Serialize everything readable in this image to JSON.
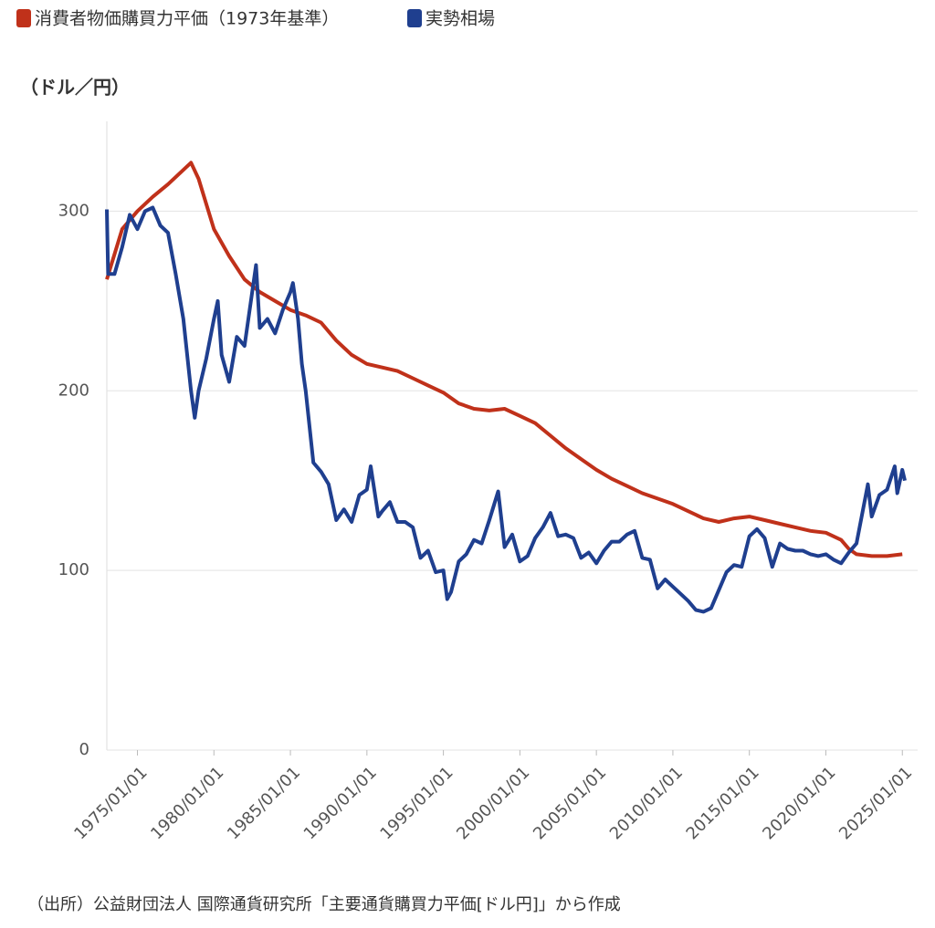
{
  "chart_data": {
    "type": "line",
    "legend_position": "top-left",
    "ylabel": "（ドル／円）",
    "source": "（出所）公益財団法人 国際通貨研究所「主要通貨購買力平価[ドル円]」から作成",
    "xlim": [
      "1973/01/01",
      "2026/01/01"
    ],
    "xticks": [
      "1975/01/01",
      "1980/01/01",
      "1985/01/01",
      "1990/01/01",
      "1995/01/01",
      "2000/01/01",
      "2005/01/01",
      "2010/01/01",
      "2015/01/01",
      "2020/01/01",
      "2025/01/01"
    ],
    "ylim": [
      0,
      350
    ],
    "yticks": [
      0,
      100,
      200,
      300
    ],
    "grid": true,
    "series": [
      {
        "name": "消費者物価購買力平価（1973年基準）",
        "color": "#c0311a",
        "x": [
          "1973/01/01",
          "1974/01/01",
          "1975/01/01",
          "1976/01/01",
          "1977/01/01",
          "1978/07/01",
          "1979/01/01",
          "1980/01/01",
          "1981/01/01",
          "1982/01/01",
          "1983/01/01",
          "1984/01/01",
          "1985/01/01",
          "1986/01/01",
          "1987/01/01",
          "1988/01/01",
          "1989/01/01",
          "1990/01/01",
          "1991/01/01",
          "1992/01/01",
          "1993/01/01",
          "1994/01/01",
          "1995/01/01",
          "1996/01/01",
          "1997/01/01",
          "1998/01/01",
          "1999/01/01",
          "2000/01/01",
          "2001/01/01",
          "2002/01/01",
          "2003/01/01",
          "2004/01/01",
          "2005/01/01",
          "2006/01/01",
          "2007/01/01",
          "2008/01/01",
          "2009/01/01",
          "2010/01/01",
          "2011/01/01",
          "2012/01/01",
          "2013/01/01",
          "2014/01/01",
          "2015/01/01",
          "2016/01/01",
          "2017/01/01",
          "2018/01/01",
          "2019/01/01",
          "2020/01/01",
          "2021/01/01",
          "2021/07/01",
          "2022/01/01",
          "2023/01/01",
          "2024/01/01",
          "2025/01/01"
        ],
        "values": [
          262,
          290,
          300,
          308,
          315,
          327,
          318,
          290,
          275,
          262,
          255,
          250,
          245,
          242,
          238,
          228,
          220,
          215,
          213,
          211,
          207,
          203,
          199,
          193,
          190,
          189,
          190,
          186,
          182,
          175,
          168,
          162,
          156,
          151,
          147,
          143,
          140,
          137,
          133,
          129,
          127,
          129,
          130,
          128,
          126,
          124,
          122,
          121,
          117,
          112,
          109,
          108,
          108,
          109
        ]
      },
      {
        "name": "実勢相場",
        "color": "#1f3f8f",
        "x": [
          "1973/01/01",
          "1973/02/01",
          "1973/07/01",
          "1974/01/01",
          "1974/07/01",
          "1975/01/01",
          "1975/07/01",
          "1976/01/01",
          "1976/07/01",
          "1977/01/01",
          "1977/07/01",
          "1978/01/01",
          "1978/07/01",
          "1978/10/01",
          "1979/01/01",
          "1979/07/01",
          "1980/01/01",
          "1980/04/01",
          "1980/07/01",
          "1981/01/01",
          "1981/07/01",
          "1982/01/01",
          "1982/10/01",
          "1983/01/01",
          "1983/07/01",
          "1984/01/01",
          "1984/07/01",
          "1985/01/01",
          "1985/03/01",
          "1985/07/01",
          "1985/10/01",
          "1986/01/01",
          "1986/07/01",
          "1987/01/01",
          "1987/07/01",
          "1988/01/01",
          "1988/07/01",
          "1989/01/01",
          "1989/07/01",
          "1990/01/01",
          "1990/04/01",
          "1990/10/01",
          "1991/01/01",
          "1991/07/01",
          "1992/01/01",
          "1992/07/01",
          "1993/01/01",
          "1993/07/01",
          "1994/01/01",
          "1994/07/01",
          "1995/01/01",
          "1995/04/01",
          "1995/07/01",
          "1996/01/01",
          "1996/07/01",
          "1997/01/01",
          "1997/07/01",
          "1998/01/01",
          "1998/08/01",
          "1999/01/01",
          "1999/07/01",
          "2000/01/01",
          "2000/07/01",
          "2001/01/01",
          "2001/07/01",
          "2002/01/01",
          "2002/07/01",
          "2003/01/01",
          "2003/07/01",
          "2004/01/01",
          "2004/07/01",
          "2005/01/01",
          "2005/07/01",
          "2006/01/01",
          "2006/07/01",
          "2007/01/01",
          "2007/07/01",
          "2008/01/01",
          "2008/07/01",
          "2009/01/01",
          "2009/07/01",
          "2010/01/01",
          "2010/07/01",
          "2011/01/01",
          "2011/07/01",
          "2012/01/01",
          "2012/07/01",
          "2013/01/01",
          "2013/07/01",
          "2014/01/01",
          "2014/07/01",
          "2015/01/01",
          "2015/07/01",
          "2016/01/01",
          "2016/07/01",
          "2017/01/01",
          "2017/07/01",
          "2018/01/01",
          "2018/07/01",
          "2019/01/01",
          "2019/07/01",
          "2020/01/01",
          "2020/07/01",
          "2021/01/01",
          "2021/07/01",
          "2022/01/01",
          "2022/10/01",
          "2023/01/01",
          "2023/07/01",
          "2024/01/01",
          "2024/07/01",
          "2024/09/01",
          "2025/01/01",
          "2025/03/01"
        ],
        "values": [
          301,
          265,
          265,
          280,
          298,
          290,
          300,
          302,
          292,
          288,
          265,
          240,
          200,
          185,
          200,
          218,
          240,
          250,
          220,
          205,
          230,
          225,
          270,
          235,
          240,
          232,
          245,
          255,
          260,
          240,
          215,
          200,
          160,
          155,
          148,
          128,
          134,
          127,
          142,
          145,
          158,
          130,
          133,
          138,
          127,
          127,
          124,
          107,
          111,
          99,
          100,
          84,
          88,
          105,
          109,
          117,
          115,
          128,
          144,
          113,
          120,
          105,
          108,
          118,
          124,
          132,
          119,
          120,
          118,
          107,
          110,
          104,
          111,
          116,
          116,
          120,
          122,
          107,
          106,
          90,
          95,
          91,
          87,
          83,
          78,
          77,
          79,
          89,
          99,
          103,
          102,
          119,
          123,
          118,
          102,
          115,
          112,
          111,
          111,
          109,
          108,
          109,
          106,
          104,
          110,
          115,
          148,
          130,
          142,
          145,
          158,
          143,
          156,
          150
        ]
      }
    ]
  }
}
